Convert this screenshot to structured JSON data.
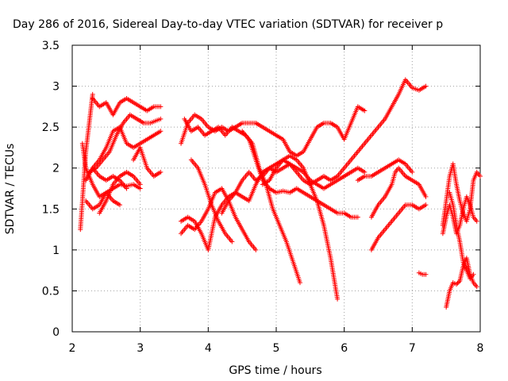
{
  "chart_data": {
    "type": "scatter",
    "title": "Day 286 of 2016, Sidereal Day-to-day VTEC variation (SDTVAR) for receiver p",
    "xlabel": "GPS time / hours",
    "ylabel": "SDTVAR / TECUs",
    "xlim": [
      2,
      8
    ],
    "ylim": [
      0,
      3.5
    ],
    "x_ticks": [
      2,
      3,
      4,
      5,
      6,
      7,
      8
    ],
    "y_ticks": [
      0,
      0.5,
      1,
      1.5,
      2,
      2.5,
      3,
      3.5
    ],
    "x_tick_labels": [
      "2",
      "3",
      "4",
      "5",
      "6",
      "7",
      "8"
    ],
    "y_tick_labels": [
      "0",
      "0.5",
      "1",
      "1.5",
      "2",
      "2.5",
      "3",
      "3.5"
    ],
    "grid": true,
    "marker": "+",
    "color": "#ff0000",
    "tracks": [
      [
        [
          2.12,
          1.25
        ],
        [
          2.15,
          1.6
        ],
        [
          2.2,
          2.2
        ],
        [
          2.25,
          2.55
        ],
        [
          2.3,
          2.9
        ]
      ],
      [
        [
          2.3,
          2.85
        ],
        [
          2.4,
          2.75
        ],
        [
          2.5,
          2.8
        ],
        [
          2.6,
          2.65
        ],
        [
          2.7,
          2.8
        ],
        [
          2.8,
          2.85
        ],
        [
          2.9,
          2.8
        ],
        [
          3.0,
          2.75
        ],
        [
          3.1,
          2.7
        ],
        [
          3.2,
          2.75
        ],
        [
          3.3,
          2.75
        ]
      ],
      [
        [
          2.15,
          2.3
        ],
        [
          2.2,
          2.0
        ],
        [
          2.3,
          1.8
        ],
        [
          2.4,
          1.65
        ],
        [
          2.5,
          1.7
        ],
        [
          2.6,
          1.6
        ],
        [
          2.7,
          1.55
        ]
      ],
      [
        [
          2.2,
          1.6
        ],
        [
          2.3,
          1.5
        ],
        [
          2.4,
          1.55
        ],
        [
          2.5,
          1.7
        ],
        [
          2.6,
          1.75
        ],
        [
          2.7,
          1.8
        ],
        [
          2.8,
          1.78
        ],
        [
          2.9,
          1.8
        ],
        [
          3.0,
          1.75
        ]
      ],
      [
        [
          2.25,
          1.95
        ],
        [
          2.35,
          2.0
        ],
        [
          2.45,
          2.1
        ],
        [
          2.55,
          2.2
        ],
        [
          2.65,
          2.4
        ],
        [
          2.75,
          2.55
        ],
        [
          2.85,
          2.65
        ],
        [
          2.95,
          2.6
        ],
        [
          3.05,
          2.55
        ],
        [
          3.15,
          2.55
        ],
        [
          3.3,
          2.6
        ]
      ],
      [
        [
          2.2,
          1.85
        ],
        [
          2.3,
          2.0
        ],
        [
          2.4,
          1.9
        ],
        [
          2.5,
          1.85
        ],
        [
          2.6,
          1.9
        ],
        [
          2.7,
          1.85
        ],
        [
          2.8,
          1.75
        ]
      ],
      [
        [
          2.3,
          2.0
        ],
        [
          2.4,
          2.1
        ],
        [
          2.5,
          2.25
        ],
        [
          2.6,
          2.45
        ],
        [
          2.7,
          2.5
        ],
        [
          2.8,
          2.3
        ],
        [
          2.9,
          2.25
        ],
        [
          3.0,
          2.3
        ],
        [
          3.1,
          2.35
        ],
        [
          3.2,
          2.4
        ],
        [
          3.3,
          2.45
        ]
      ],
      [
        [
          2.4,
          1.45
        ],
        [
          2.5,
          1.6
        ],
        [
          2.6,
          1.8
        ],
        [
          2.7,
          1.9
        ],
        [
          2.8,
          1.95
        ],
        [
          2.9,
          1.9
        ],
        [
          3.0,
          1.8
        ]
      ],
      [
        [
          2.9,
          2.1
        ],
        [
          3.0,
          2.25
        ],
        [
          3.1,
          2.0
        ],
        [
          3.2,
          1.9
        ],
        [
          3.3,
          1.95
        ]
      ],
      [
        [
          3.6,
          2.3
        ],
        [
          3.7,
          2.55
        ],
        [
          3.8,
          2.65
        ],
        [
          3.9,
          2.6
        ],
        [
          4.0,
          2.5
        ],
        [
          4.1,
          2.45
        ],
        [
          4.2,
          2.5
        ],
        [
          4.3,
          2.45
        ],
        [
          4.4,
          2.5
        ],
        [
          4.5,
          2.55
        ],
        [
          4.6,
          2.55
        ],
        [
          4.7,
          2.55
        ],
        [
          4.8,
          2.5
        ],
        [
          4.9,
          2.45
        ],
        [
          5.0,
          2.4
        ],
        [
          5.1,
          2.35
        ],
        [
          5.2,
          2.2
        ],
        [
          5.3,
          2.15
        ],
        [
          5.4,
          2.2
        ],
        [
          5.5,
          2.35
        ],
        [
          5.6,
          2.5
        ],
        [
          5.7,
          2.55
        ],
        [
          5.8,
          2.55
        ],
        [
          5.9,
          2.5
        ],
        [
          6.0,
          2.35
        ],
        [
          6.1,
          2.55
        ],
        [
          6.2,
          2.75
        ],
        [
          6.3,
          2.7
        ]
      ],
      [
        [
          3.65,
          2.6
        ],
        [
          3.75,
          2.45
        ],
        [
          3.85,
          2.5
        ],
        [
          3.95,
          2.4
        ],
        [
          4.05,
          2.45
        ],
        [
          4.15,
          2.5
        ],
        [
          4.25,
          2.4
        ],
        [
          4.35,
          2.5
        ],
        [
          4.45,
          2.45
        ],
        [
          4.55,
          2.4
        ],
        [
          4.65,
          2.3
        ],
        [
          4.75,
          2.0
        ],
        [
          4.85,
          1.8
        ],
        [
          4.95,
          1.5
        ],
        [
          5.05,
          1.3
        ],
        [
          5.15,
          1.1
        ],
        [
          5.25,
          0.85
        ],
        [
          5.35,
          0.6
        ]
      ],
      [
        [
          4.5,
          2.45
        ],
        [
          4.6,
          2.35
        ],
        [
          4.7,
          2.1
        ],
        [
          4.8,
          1.85
        ],
        [
          4.9,
          1.75
        ],
        [
          5.0,
          1.7
        ],
        [
          5.1,
          1.72
        ],
        [
          5.2,
          1.7
        ],
        [
          5.3,
          1.75
        ],
        [
          5.4,
          1.7
        ],
        [
          5.5,
          1.65
        ],
        [
          5.6,
          1.6
        ],
        [
          5.7,
          1.55
        ],
        [
          5.8,
          1.5
        ],
        [
          5.9,
          1.45
        ],
        [
          6.0,
          1.45
        ],
        [
          6.1,
          1.4
        ],
        [
          6.2,
          1.4
        ]
      ],
      [
        [
          3.6,
          1.35
        ],
        [
          3.7,
          1.4
        ],
        [
          3.8,
          1.35
        ],
        [
          3.9,
          1.2
        ],
        [
          4.0,
          1.0
        ],
        [
          4.1,
          1.4
        ],
        [
          4.2,
          1.55
        ],
        [
          4.3,
          1.65
        ],
        [
          4.4,
          1.7
        ],
        [
          4.5,
          1.65
        ],
        [
          4.6,
          1.6
        ],
        [
          4.7,
          1.8
        ],
        [
          4.8,
          1.95
        ],
        [
          4.9,
          2.0
        ],
        [
          5.0,
          2.05
        ],
        [
          5.1,
          2.1
        ],
        [
          5.2,
          2.15
        ],
        [
          5.3,
          2.1
        ],
        [
          5.4,
          2.0
        ],
        [
          5.5,
          1.8
        ],
        [
          5.6,
          1.6
        ],
        [
          5.7,
          1.3
        ],
        [
          5.8,
          0.9
        ],
        [
          5.9,
          0.4
        ]
      ],
      [
        [
          3.6,
          1.2
        ],
        [
          3.7,
          1.3
        ],
        [
          3.8,
          1.25
        ],
        [
          3.9,
          1.35
        ],
        [
          4.0,
          1.5
        ],
        [
          4.1,
          1.7
        ],
        [
          4.2,
          1.75
        ],
        [
          4.3,
          1.6
        ],
        [
          4.4,
          1.4
        ],
        [
          4.5,
          1.25
        ],
        [
          4.6,
          1.1
        ],
        [
          4.7,
          1.0
        ]
      ],
      [
        [
          3.75,
          2.1
        ],
        [
          3.85,
          2.0
        ],
        [
          3.95,
          1.8
        ],
        [
          4.05,
          1.55
        ],
        [
          4.15,
          1.35
        ],
        [
          4.25,
          1.2
        ],
        [
          4.35,
          1.1
        ]
      ],
      [
        [
          4.2,
          1.45
        ],
        [
          4.3,
          1.6
        ],
        [
          4.4,
          1.7
        ],
        [
          4.5,
          1.85
        ],
        [
          4.6,
          1.95
        ],
        [
          4.7,
          1.85
        ],
        [
          4.8,
          1.9
        ],
        [
          4.9,
          2.0
        ],
        [
          5.0,
          1.95
        ],
        [
          5.1,
          2.0
        ],
        [
          5.2,
          2.05
        ],
        [
          5.3,
          2.0
        ],
        [
          5.4,
          1.95
        ],
        [
          5.5,
          1.85
        ],
        [
          5.6,
          1.8
        ],
        [
          5.7,
          1.75
        ],
        [
          5.8,
          1.8
        ],
        [
          5.9,
          1.85
        ],
        [
          6.0,
          1.9
        ],
        [
          6.1,
          1.95
        ],
        [
          6.2,
          2.0
        ],
        [
          6.3,
          1.95
        ]
      ],
      [
        [
          4.8,
          1.8
        ],
        [
          4.9,
          1.85
        ],
        [
          5.0,
          2.0
        ],
        [
          5.1,
          2.1
        ],
        [
          5.2,
          2.05
        ],
        [
          5.3,
          1.95
        ],
        [
          5.4,
          1.85
        ],
        [
          5.5,
          1.8
        ],
        [
          5.6,
          1.85
        ],
        [
          5.7,
          1.9
        ],
        [
          5.8,
          1.85
        ],
        [
          5.9,
          1.9
        ],
        [
          6.0,
          2.0
        ],
        [
          6.1,
          2.1
        ],
        [
          6.2,
          2.2
        ],
        [
          6.3,
          2.3
        ],
        [
          6.4,
          2.4
        ],
        [
          6.5,
          2.5
        ],
        [
          6.6,
          2.6
        ],
        [
          6.7,
          2.75
        ],
        [
          6.8,
          2.9
        ],
        [
          6.9,
          3.08
        ],
        [
          7.0,
          2.98
        ],
        [
          7.1,
          2.95
        ],
        [
          7.2,
          3.0
        ]
      ],
      [
        [
          6.2,
          1.85
        ],
        [
          6.3,
          1.9
        ],
        [
          6.4,
          1.9
        ],
        [
          6.5,
          1.95
        ],
        [
          6.6,
          2.0
        ],
        [
          6.7,
          2.05
        ],
        [
          6.8,
          2.1
        ],
        [
          6.9,
          2.05
        ],
        [
          7.0,
          1.95
        ]
      ],
      [
        [
          6.4,
          1.4
        ],
        [
          6.5,
          1.55
        ],
        [
          6.6,
          1.65
        ],
        [
          6.7,
          1.8
        ],
        [
          6.75,
          1.95
        ],
        [
          6.8,
          2.0
        ],
        [
          6.9,
          1.9
        ],
        [
          7.0,
          1.85
        ],
        [
          7.1,
          1.8
        ],
        [
          7.2,
          1.65
        ]
      ],
      [
        [
          6.4,
          1.0
        ],
        [
          6.5,
          1.15
        ],
        [
          6.6,
          1.25
        ],
        [
          6.7,
          1.35
        ],
        [
          6.8,
          1.45
        ],
        [
          6.9,
          1.55
        ],
        [
          7.0,
          1.55
        ],
        [
          7.1,
          1.5
        ],
        [
          7.2,
          1.55
        ]
      ],
      [
        [
          7.1,
          0.72
        ],
        [
          7.15,
          0.7
        ],
        [
          7.2,
          0.7
        ]
      ],
      [
        [
          7.45,
          1.3
        ],
        [
          7.5,
          1.6
        ],
        [
          7.55,
          1.9
        ],
        [
          7.6,
          2.05
        ],
        [
          7.65,
          1.8
        ],
        [
          7.7,
          1.6
        ],
        [
          7.75,
          1.45
        ],
        [
          7.8,
          1.35
        ],
        [
          7.85,
          1.5
        ],
        [
          7.9,
          1.85
        ],
        [
          7.95,
          1.95
        ],
        [
          8.0,
          1.9
        ]
      ],
      [
        [
          7.5,
          0.3
        ],
        [
          7.55,
          0.5
        ],
        [
          7.6,
          0.6
        ],
        [
          7.65,
          0.58
        ],
        [
          7.7,
          0.62
        ],
        [
          7.75,
          0.8
        ],
        [
          7.8,
          0.9
        ],
        [
          7.85,
          0.7
        ],
        [
          7.9,
          0.6
        ],
        [
          7.95,
          0.55
        ]
      ],
      [
        [
          7.45,
          1.2
        ],
        [
          7.5,
          1.4
        ],
        [
          7.55,
          1.55
        ],
        [
          7.6,
          1.4
        ],
        [
          7.65,
          1.2
        ],
        [
          7.7,
          1.3
        ],
        [
          7.75,
          1.5
        ],
        [
          7.8,
          1.65
        ],
        [
          7.85,
          1.55
        ],
        [
          7.9,
          1.4
        ],
        [
          7.95,
          1.35
        ]
      ],
      [
        [
          7.55,
          1.7
        ],
        [
          7.6,
          1.55
        ],
        [
          7.65,
          1.3
        ],
        [
          7.7,
          1.1
        ],
        [
          7.75,
          0.85
        ],
        [
          7.8,
          0.75
        ],
        [
          7.85,
          0.65
        ],
        [
          7.9,
          0.7
        ]
      ]
    ]
  }
}
